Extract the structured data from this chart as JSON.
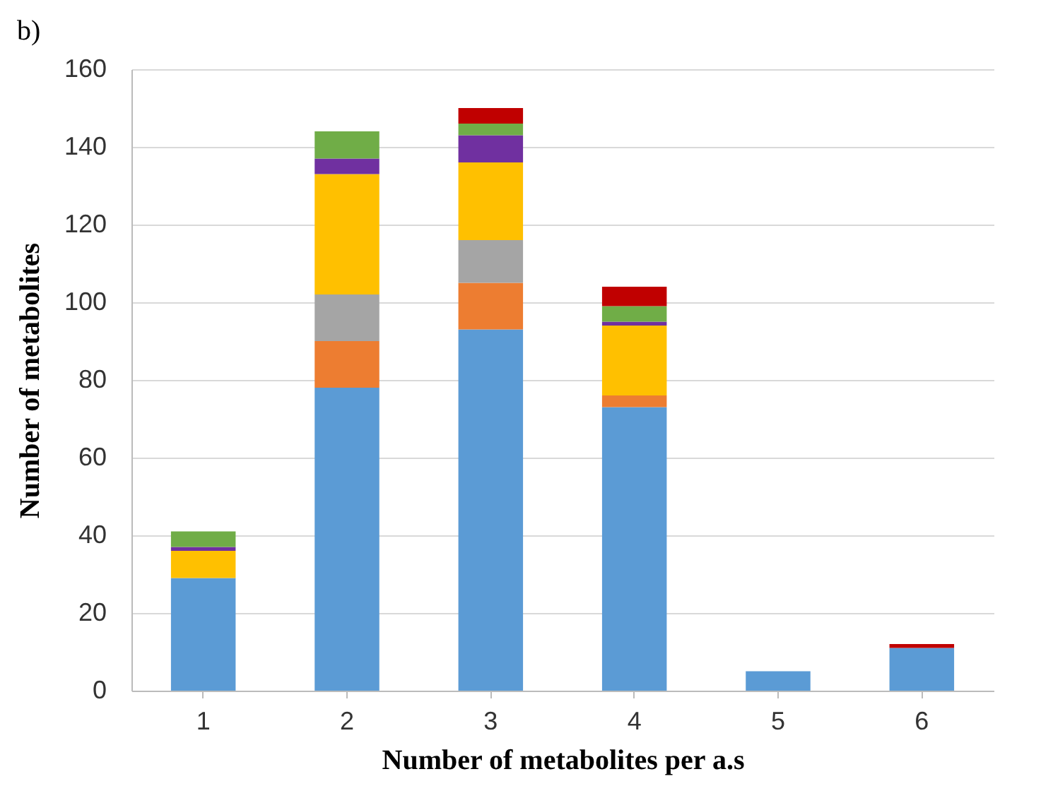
{
  "chart_data": {
    "type": "bar",
    "stacked": true,
    "xlabel": "Number of metabolites per a.s",
    "ylabel": "Number of metabolites",
    "annotations": [
      "b)"
    ],
    "categories": [
      "1",
      "2",
      "3",
      "4",
      "5",
      "6"
    ],
    "series": [
      {
        "color": "#5b9bd5",
        "values": [
          29,
          78,
          93,
          73,
          5,
          11
        ]
      },
      {
        "color": "#ed7d31",
        "values": [
          null,
          12,
          12,
          3,
          null,
          null
        ]
      },
      {
        "color": "#a5a5a5",
        "values": [
          null,
          12,
          11,
          null,
          null,
          null
        ]
      },
      {
        "color": "#ffc000",
        "values": [
          7,
          31,
          20,
          18,
          null,
          null
        ]
      },
      {
        "color": "#7030a0",
        "values": [
          1,
          4,
          7,
          1,
          null,
          null
        ]
      },
      {
        "color": "#70ad47",
        "values": [
          4,
          7,
          3,
          4,
          null,
          null
        ]
      },
      {
        "color": "#c00000",
        "values": [
          null,
          null,
          4,
          5,
          null,
          1
        ]
      }
    ],
    "ylim": [
      0,
      160
    ],
    "yticks": [
      0,
      20,
      40,
      60,
      80,
      100,
      120,
      140,
      160
    ],
    "grid": "y",
    "legend": false
  }
}
